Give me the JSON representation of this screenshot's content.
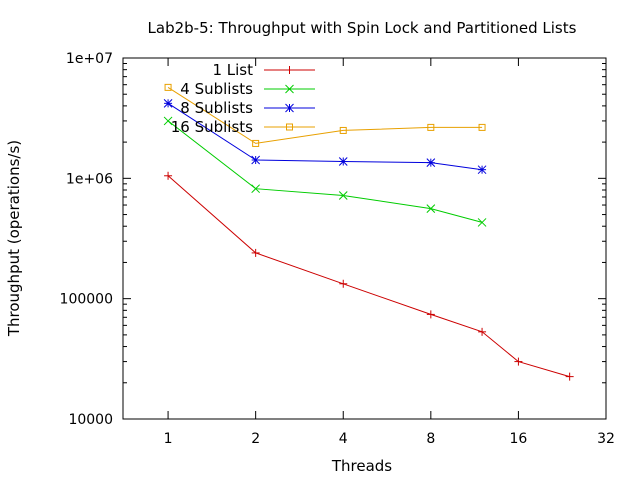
{
  "chart_data": {
    "type": "line",
    "title": "Lab2b-5: Throughput with Spin Lock and Partitioned Lists",
    "xlabel": "Threads",
    "ylabel": "Throughput (operations/s)",
    "x_scale": "log2",
    "y_scale": "log10",
    "xlim": [
      0.7,
      32
    ],
    "ylim": [
      10000,
      10000000
    ],
    "x_ticks": [
      1,
      2,
      4,
      8,
      16,
      32
    ],
    "x_tick_labels": [
      "1",
      "2",
      "4",
      "8",
      "16",
      "32"
    ],
    "y_ticks": [
      10000,
      100000,
      1000000,
      10000000
    ],
    "y_tick_labels": [
      "10000",
      "100000",
      "1e+06",
      "1e+07"
    ],
    "grid": false,
    "legend_position": "top-left",
    "series": [
      {
        "name": "1 List",
        "color": "#cc0000",
        "marker": "plus",
        "x": [
          1,
          2,
          4,
          8,
          12,
          16,
          24
        ],
        "y": [
          1050000,
          240000,
          133000,
          74000,
          53000,
          30000,
          22500
        ]
      },
      {
        "name": "4 Sublists",
        "color": "#00cc00",
        "marker": "cross",
        "x": [
          1,
          2,
          4,
          8,
          12
        ],
        "y": [
          3000000,
          820000,
          720000,
          560000,
          430000
        ]
      },
      {
        "name": "8 Sublists",
        "color": "#0000dd",
        "marker": "star",
        "x": [
          1,
          2,
          4,
          8,
          12
        ],
        "y": [
          4200000,
          1420000,
          1380000,
          1350000,
          1180000
        ]
      },
      {
        "name": "16 Sublists",
        "color": "#e8a000",
        "marker": "square",
        "x": [
          1,
          2,
          4,
          8,
          12
        ],
        "y": [
          5700000,
          1950000,
          2500000,
          2650000,
          2650000
        ]
      }
    ]
  }
}
